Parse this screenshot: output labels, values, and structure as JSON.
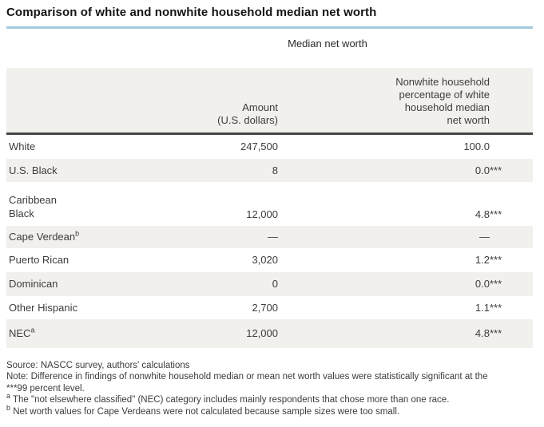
{
  "title": "Comparison of white and nonwhite household median net worth",
  "table": {
    "spanner": "Median net worth",
    "columns": {
      "group_label": "",
      "amount": "Amount\n(U.S. dollars)",
      "pct": "Nonwhite household\npercentage of white\nhousehold median\nnet worth"
    },
    "rows": [
      {
        "name": "White",
        "sup": "",
        "amount": "247,500",
        "pct": "100.0",
        "stars": ""
      },
      {
        "name": "U.S. Black",
        "sup": "",
        "amount": "8",
        "pct": "0.0",
        "stars": "***"
      },
      {
        "name": "Caribbean\nBlack",
        "sup": "",
        "amount": "12,000",
        "pct": "4.8",
        "stars": "***"
      },
      {
        "name": "Cape Verdean",
        "sup": "b",
        "amount": "—",
        "pct": "—",
        "stars": ""
      },
      {
        "name": "Puerto Rican",
        "sup": "",
        "amount": "3,020",
        "pct": "1.2",
        "stars": "***"
      },
      {
        "name": "Dominican",
        "sup": "",
        "amount": "0",
        "pct": "0.0",
        "stars": "***"
      },
      {
        "name": "Other Hispanic",
        "sup": "",
        "amount": "2,700",
        "pct": "1.1",
        "stars": "***"
      },
      {
        "name": "NEC",
        "sup": "a",
        "amount": "12,000",
        "pct": "4.8",
        "stars": "***"
      }
    ]
  },
  "notes": {
    "source": "Source: NASCC survey, authors' calculations",
    "significance": "Note: Difference in findings of nonwhite household median or mean net worth values were statistically significant at the\n***99 percent level.",
    "a_sup": "a",
    "a_text": " The \"not elsewhere classified\" (NEC) category includes mainly respondents that chose more than one race.",
    "b_sup": "b",
    "b_text": " Net worth values for Cape Verdeans were not calculated because sample sizes were too small."
  },
  "colors": {
    "accent_line": "#a4c9dc",
    "row_alt_background": "#f2f0ed",
    "header_border": "#474747",
    "text": "#3c3c3c"
  }
}
